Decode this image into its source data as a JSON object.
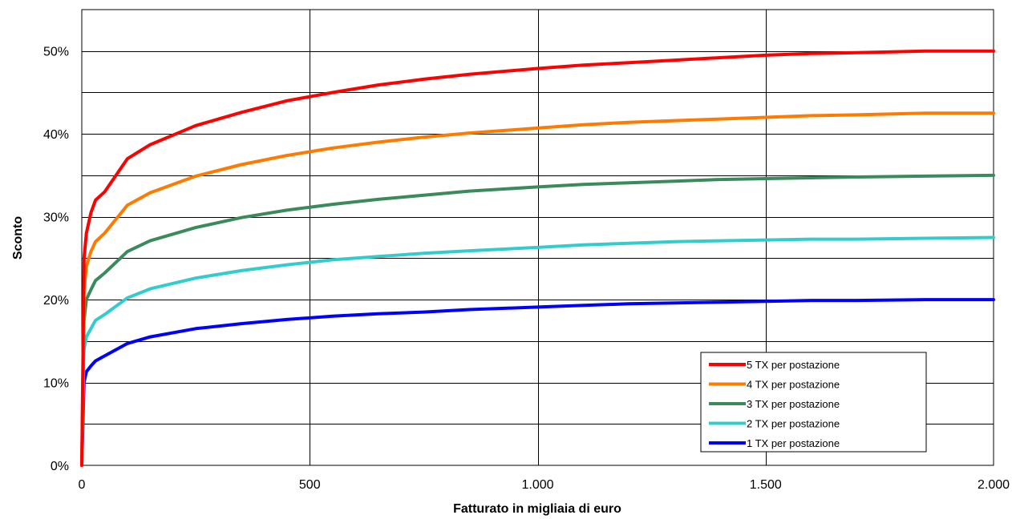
{
  "chart_data": {
    "type": "line",
    "title": "",
    "xlabel": "Fatturato in migliaia di euro",
    "ylabel": "Sconto",
    "xlim": [
      0,
      2000
    ],
    "ylim": [
      0,
      0.55
    ],
    "x_ticks": [
      0,
      500,
      1000,
      1500,
      2000
    ],
    "x_tick_labels": [
      "0",
      "500",
      "1.000",
      "1.500",
      "2.000"
    ],
    "y_ticks": [
      0,
      0.1,
      0.2,
      0.3,
      0.4,
      0.5
    ],
    "y_tick_labels": [
      "0%",
      "10%",
      "20%",
      "30%",
      "40%",
      "50%"
    ],
    "y_minor_gridlines": [
      0.05,
      0.15,
      0.25,
      0.35,
      0.45
    ],
    "grid": true,
    "legend_position": "bottom-right",
    "x": [
      0,
      5,
      10,
      20,
      30,
      50,
      100,
      150,
      250,
      350,
      450,
      550,
      650,
      750,
      850,
      1000,
      1100,
      1200,
      1300,
      1400,
      1500,
      1600,
      1700,
      1850,
      2000
    ],
    "series": [
      {
        "name": "5 TX per postazione",
        "color": "#ff0000",
        "values": [
          0.0,
          0.25,
          0.28,
          0.305,
          0.32,
          0.33,
          0.37,
          0.387,
          0.41,
          0.426,
          0.44,
          0.45,
          0.459,
          0.466,
          0.472,
          0.479,
          0.483,
          0.486,
          0.489,
          0.492,
          0.495,
          0.497,
          0.498,
          0.5,
          0.5
        ]
      },
      {
        "name": "4 TX per postazione",
        "color": "#ff7a00",
        "values": [
          0.0,
          0.21,
          0.24,
          0.258,
          0.27,
          0.28,
          0.314,
          0.329,
          0.349,
          0.363,
          0.374,
          0.383,
          0.39,
          0.396,
          0.401,
          0.407,
          0.411,
          0.414,
          0.416,
          0.418,
          0.42,
          0.422,
          0.423,
          0.425,
          0.425
        ]
      },
      {
        "name": "3 TX per postazione",
        "color": "#3a8a5c",
        "values": [
          0.0,
          0.175,
          0.2,
          0.212,
          0.223,
          0.232,
          0.258,
          0.271,
          0.287,
          0.299,
          0.308,
          0.315,
          0.321,
          0.326,
          0.331,
          0.336,
          0.339,
          0.341,
          0.343,
          0.345,
          0.346,
          0.347,
          0.348,
          0.349,
          0.35
        ]
      },
      {
        "name": "2 TX per postazione",
        "color": "#33cccc",
        "values": [
          0.0,
          0.14,
          0.155,
          0.165,
          0.175,
          0.182,
          0.202,
          0.213,
          0.226,
          0.235,
          0.242,
          0.248,
          0.252,
          0.256,
          0.259,
          0.263,
          0.266,
          0.268,
          0.27,
          0.271,
          0.272,
          0.273,
          0.273,
          0.274,
          0.275
        ]
      },
      {
        "name": "1 TX per postazione",
        "color": "#0000ff",
        "values": [
          0.0,
          0.1,
          0.113,
          0.12,
          0.126,
          0.132,
          0.147,
          0.155,
          0.165,
          0.171,
          0.176,
          0.18,
          0.183,
          0.185,
          0.188,
          0.191,
          0.193,
          0.195,
          0.196,
          0.197,
          0.198,
          0.199,
          0.199,
          0.2,
          0.2
        ]
      }
    ]
  }
}
